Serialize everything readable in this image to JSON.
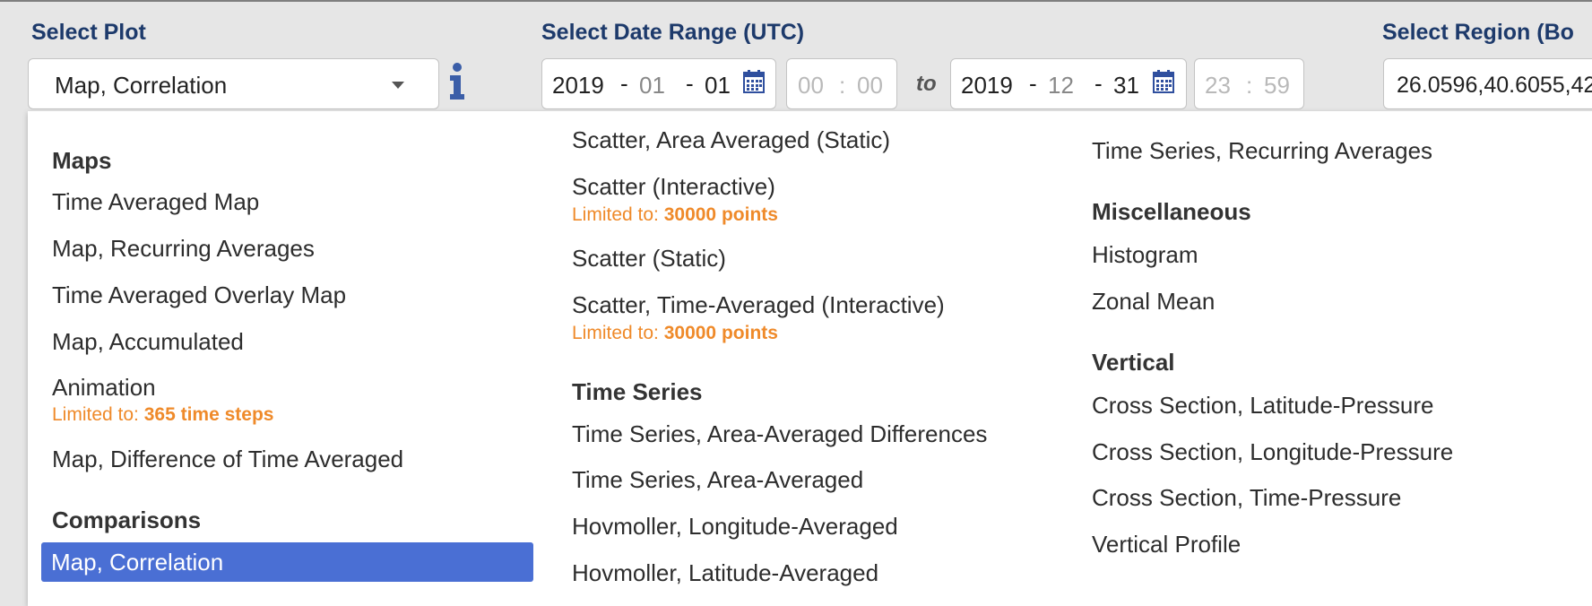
{
  "header": {
    "select_plot_label": "Select Plot",
    "date_range_label": "Select Date Range (UTC)",
    "region_label": "Select Region (Bo",
    "to_label": "to"
  },
  "plot_select": {
    "value": "Map, Correlation"
  },
  "start": {
    "year": "2019",
    "month": "01",
    "day": "01",
    "hour": "00",
    "minute": "00"
  },
  "end": {
    "year": "2019",
    "month": "12",
    "day": "31",
    "hour": "23",
    "minute": "59"
  },
  "region": {
    "value": "26.0596,40.6055,42"
  },
  "icons": {
    "info": "info-icon",
    "calendar": "calendar-icon",
    "caret": "chevron-down-icon"
  },
  "colors": {
    "accent_blue": "#4a6fd4",
    "label_navy": "#1d3a6b",
    "limit_orange": "#ef8a2a"
  },
  "menu": {
    "col1": {
      "maps_header": "Maps",
      "time_averaged_map": "Time Averaged Map",
      "map_recurring_averages": "Map, Recurring Averages",
      "time_averaged_overlay_map": "Time Averaged Overlay Map",
      "map_accumulated": "Map, Accumulated",
      "animation": "Animation",
      "animation_limit_prefix": "Limited to: ",
      "animation_limit_value": "365 time steps",
      "map_difference": "Map, Difference of Time Averaged",
      "comparisons_header": "Comparisons",
      "map_correlation": "Map, Correlation"
    },
    "col2": {
      "scatter_area_static": "Scatter, Area Averaged (Static)",
      "scatter_interactive": "Scatter (Interactive)",
      "scatter_interactive_limit_prefix": "Limited to: ",
      "scatter_interactive_limit_value": "30000 points",
      "scatter_static": "Scatter (Static)",
      "scatter_time_averaged": "Scatter, Time-Averaged (Interactive)",
      "scatter_time_averaged_limit_prefix": "Limited to: ",
      "scatter_time_averaged_limit_value": "30000 points",
      "time_series_header": "Time Series",
      "ts_area_avg_diff": "Time Series, Area-Averaged Differences",
      "ts_area_avg": "Time Series, Area-Averaged",
      "hov_lon": "Hovmoller, Longitude-Averaged",
      "hov_lat": "Hovmoller, Latitude-Averaged"
    },
    "col3": {
      "ts_recurring": "Time Series, Recurring Averages",
      "misc_header": "Miscellaneous",
      "histogram": "Histogram",
      "zonal_mean": "Zonal Mean",
      "vertical_header": "Vertical",
      "cs_lat_pressure": "Cross Section, Latitude-Pressure",
      "cs_lon_pressure": "Cross Section, Longitude-Pressure",
      "cs_time_pressure": "Cross Section, Time-Pressure",
      "vertical_profile": "Vertical Profile"
    }
  }
}
